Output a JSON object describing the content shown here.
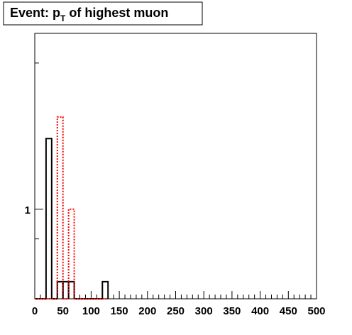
{
  "chart_data": {
    "type": "histogram",
    "title": [
      "Event: p",
      "T",
      " of highest muon"
    ],
    "bins": [
      0,
      10,
      20,
      30,
      40,
      50,
      60,
      70,
      80,
      90,
      100,
      110,
      120,
      130
    ],
    "series": [
      {
        "color": "#000000",
        "dash": false,
        "values": [
          0,
          0,
          1.7,
          0,
          0.58,
          0.58,
          0.58,
          0,
          0,
          0,
          0,
          0,
          0.58
        ]
      },
      {
        "color": "#ff0000",
        "dash": true,
        "values": [
          0,
          0,
          0,
          0,
          2,
          0,
          1,
          0,
          0,
          0,
          0,
          0,
          0
        ]
      }
    ],
    "xlim": [
      0,
      500
    ],
    "xticks": [
      0,
      50,
      100,
      150,
      200,
      250,
      300,
      350,
      400,
      450,
      500
    ],
    "xminor": [
      10,
      20,
      30,
      40,
      60,
      70,
      80,
      90,
      110,
      120,
      130,
      140,
      160,
      170,
      180,
      190,
      210,
      220,
      230,
      240,
      260,
      270,
      280,
      290,
      310,
      320,
      330,
      340,
      360,
      370,
      380,
      390,
      410,
      420,
      430,
      440,
      460,
      470,
      480,
      490
    ],
    "ylim": [
      0.51,
      3.75
    ],
    "yticks": [
      1
    ],
    "yminor": [
      0.8,
      3
    ],
    "log_y": true
  }
}
